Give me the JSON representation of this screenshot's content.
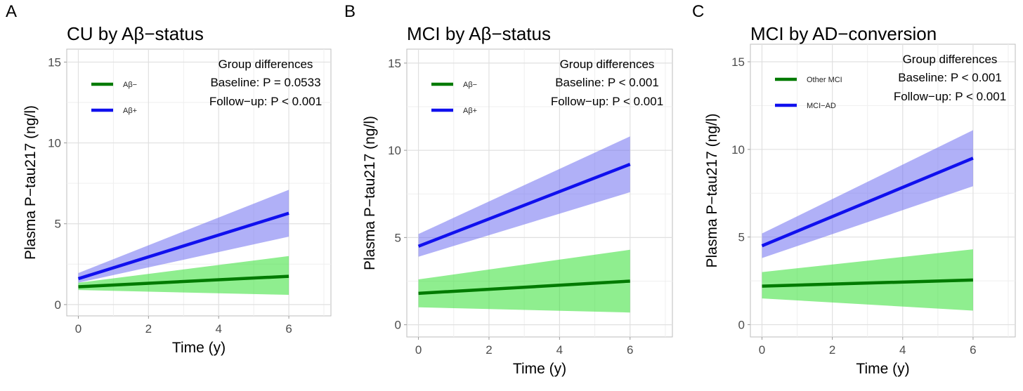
{
  "chart_data": [
    {
      "type": "line",
      "panel_letter": "A",
      "title": "CU by Aβ−status",
      "xlabel": "Time (y)",
      "ylabel": "Plasma P−tau217 (ng/l)",
      "xlim": [
        -0.33,
        7.2
      ],
      "ylim": [
        -0.7,
        15.8
      ],
      "xticks": [
        0,
        2,
        4,
        6
      ],
      "yticks": [
        0,
        5,
        10,
        15
      ],
      "grid": true,
      "legend_position": "top-left",
      "annotation": {
        "heading": "Group differences",
        "baseline": "Baseline: P = 0.0533",
        "followup": "Follow−up: P < 0.001"
      },
      "series": [
        {
          "name": "Aβ−",
          "color": "#007a00",
          "band_color": "#33e033",
          "x": [
            0,
            6
          ],
          "y": [
            1.1,
            1.75
          ],
          "ci_low": [
            0.9,
            0.6
          ],
          "ci_high": [
            1.35,
            3.0
          ]
        },
        {
          "name": "Aβ+",
          "color": "#1010ee",
          "band_color": "#6f6ff0",
          "x": [
            0,
            6
          ],
          "y": [
            1.6,
            5.65
          ],
          "ci_low": [
            1.35,
            4.2
          ],
          "ci_high": [
            1.95,
            7.1
          ]
        }
      ]
    },
    {
      "type": "line",
      "panel_letter": "B",
      "title": "MCI by Aβ−status",
      "xlabel": "Time (y)",
      "ylabel": "Plasma P−tau217 (ng/l)",
      "xlim": [
        -0.33,
        7.2
      ],
      "ylim": [
        -0.7,
        15.8
      ],
      "xticks": [
        0,
        2,
        4,
        6
      ],
      "yticks": [
        0,
        5,
        10,
        15
      ],
      "grid": true,
      "legend_position": "top-left",
      "annotation": {
        "heading": "Group differences",
        "baseline": "Baseline: P < 0.001",
        "followup": "Follow−up: P < 0.001"
      },
      "series": [
        {
          "name": "Aβ−",
          "color": "#007a00",
          "band_color": "#33e033",
          "x": [
            0,
            6
          ],
          "y": [
            1.8,
            2.5
          ],
          "ci_low": [
            1.0,
            0.7
          ],
          "ci_high": [
            2.6,
            4.3
          ]
        },
        {
          "name": "Aβ+",
          "color": "#1010ee",
          "band_color": "#6f6ff0",
          "x": [
            0,
            6
          ],
          "y": [
            4.5,
            9.2
          ],
          "ci_low": [
            3.9,
            7.6
          ],
          "ci_high": [
            5.2,
            10.8
          ]
        }
      ]
    },
    {
      "type": "line",
      "panel_letter": "C",
      "title": "MCI by AD−conversion",
      "xlabel": "Time (y)",
      "ylabel": "Plasma P−tau217 (ng/l)",
      "xlim": [
        -0.33,
        7.2
      ],
      "ylim": [
        -0.7,
        16.0
      ],
      "xticks": [
        0,
        2,
        4,
        6
      ],
      "yticks": [
        0,
        5,
        10,
        15
      ],
      "grid": true,
      "legend_position": "top-left",
      "annotation": {
        "heading": "Group differences",
        "baseline": "Baseline: P < 0.001",
        "followup": "Follow−up: P < 0.001"
      },
      "series": [
        {
          "name": "Other MCI",
          "color": "#007a00",
          "band_color": "#33e033",
          "x": [
            0,
            6
          ],
          "y": [
            2.2,
            2.55
          ],
          "ci_low": [
            1.5,
            0.8
          ],
          "ci_high": [
            3.0,
            4.3
          ]
        },
        {
          "name": "MCI−AD",
          "color": "#1010ee",
          "band_color": "#6f6ff0",
          "x": [
            0,
            6
          ],
          "y": [
            4.5,
            9.5
          ],
          "ci_low": [
            3.8,
            7.9
          ],
          "ci_high": [
            5.2,
            11.1
          ]
        }
      ]
    }
  ]
}
